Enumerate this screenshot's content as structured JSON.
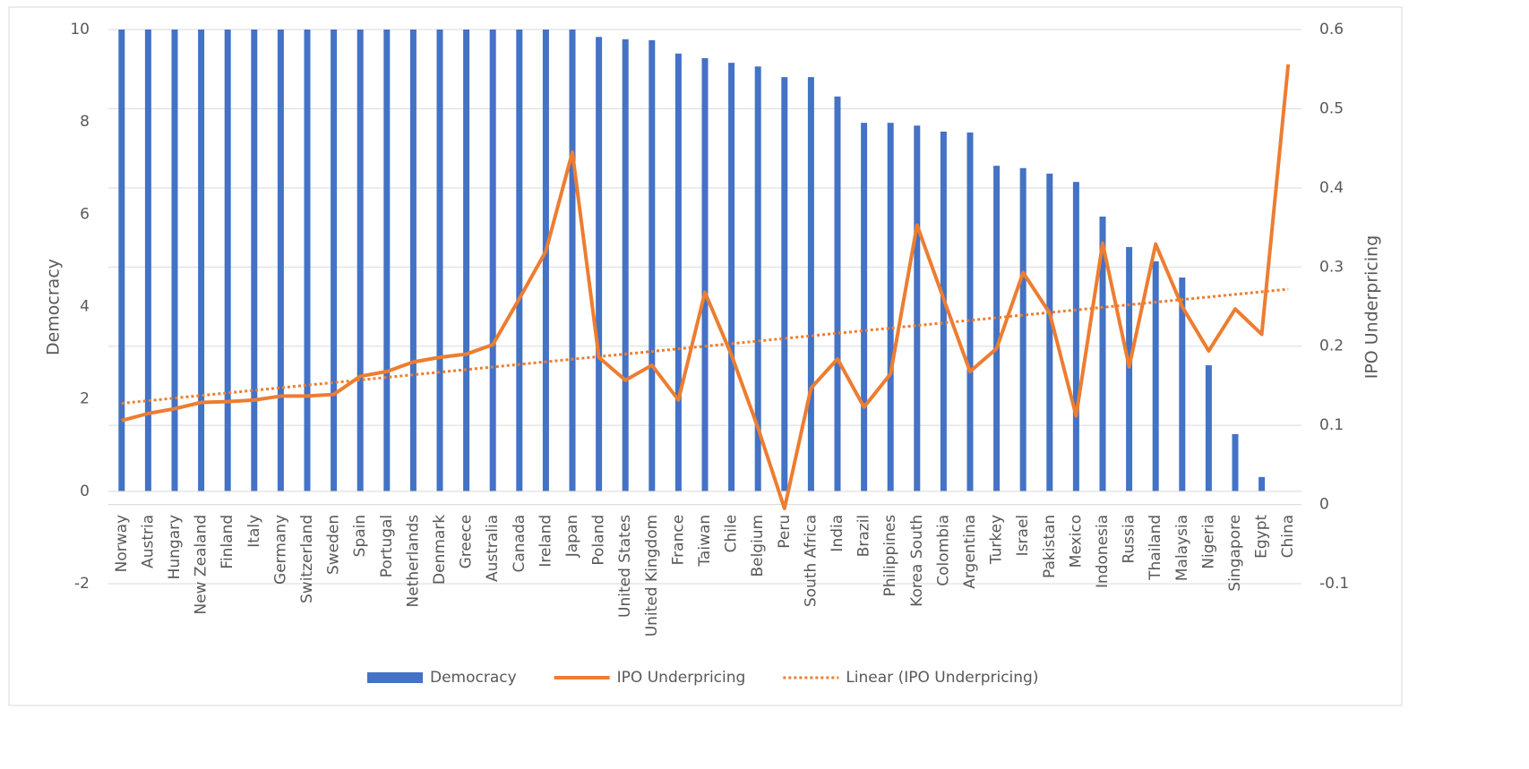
{
  "chart_data": {
    "type": "bar_line",
    "categories": [
      "Norway",
      "Austria",
      "Hungary",
      "New Zealand",
      "Finland",
      "Italy",
      "Germany",
      "Switzerland",
      "Sweden",
      "Spain",
      "Portugal",
      "Netherlands",
      "Denmark",
      "Greece",
      "Australia",
      "Canada",
      "Ireland",
      "Japan",
      "Poland",
      "United States",
      "United Kingdom",
      "France",
      "Taiwan",
      "Chile",
      "Belgium",
      "Peru",
      "South Africa",
      "India",
      "Brazil",
      "Philippines",
      "Korea South",
      "Colombia",
      "Argentina",
      "Turkey",
      "Israel",
      "Pakistan",
      "Mexico",
      "Indonesia",
      "Russia",
      "Thailand",
      "Malaysia",
      "Nigeria",
      "Singapore",
      "Egypt",
      "China"
    ],
    "series": [
      {
        "name": "Democracy",
        "type": "bar",
        "color": "#4472c4",
        "axis": "y",
        "values": [
          10,
          10,
          10,
          10,
          10,
          10,
          10,
          10,
          10,
          10,
          10,
          10,
          10,
          10,
          10,
          10,
          10,
          10,
          9.84,
          9.79,
          9.77,
          9.48,
          9.38,
          9.28,
          9.2,
          8.97,
          8.97,
          8.55,
          7.98,
          7.98,
          7.92,
          7.79,
          7.77,
          7.05,
          7.0,
          6.88,
          6.7,
          5.95,
          5.29,
          4.98,
          4.63,
          2.73,
          1.24,
          0.31,
          0
        ]
      },
      {
        "name": "IPO Underpricing",
        "type": "line",
        "color": "#ed7d31",
        "axis": "y2",
        "values": [
          0.106,
          0.115,
          0.121,
          0.129,
          0.13,
          0.132,
          0.137,
          0.137,
          0.139,
          0.162,
          0.168,
          0.18,
          0.186,
          0.19,
          0.202,
          0.26,
          0.32,
          0.445,
          0.186,
          0.157,
          0.176,
          0.132,
          0.268,
          0.189,
          0.097,
          -0.005,
          0.147,
          0.184,
          0.123,
          0.165,
          0.353,
          0.26,
          0.168,
          0.197,
          0.293,
          0.242,
          0.112,
          0.33,
          0.174,
          0.329,
          0.25,
          0.194,
          0.247,
          0.215,
          0.556
        ]
      }
    ],
    "trendline": {
      "name": "Linear (IPO Underpricing)",
      "series": 1,
      "kind": "linear",
      "color": "#ed7d31",
      "style": "dotted"
    },
    "ylabel": "Democracy",
    "y2label": "IPO Underpricing",
    "ylim": [
      -2,
      10
    ],
    "yticks": [
      -2,
      0,
      2,
      4,
      6,
      8,
      10
    ],
    "y2lim": [
      -0.1,
      0.6
    ],
    "y2ticks": [
      -0.1,
      0,
      0.1,
      0.2,
      0.3,
      0.4,
      0.5,
      0.6
    ],
    "grid": true,
    "grid_axis": "y2",
    "legend": "bottom"
  }
}
